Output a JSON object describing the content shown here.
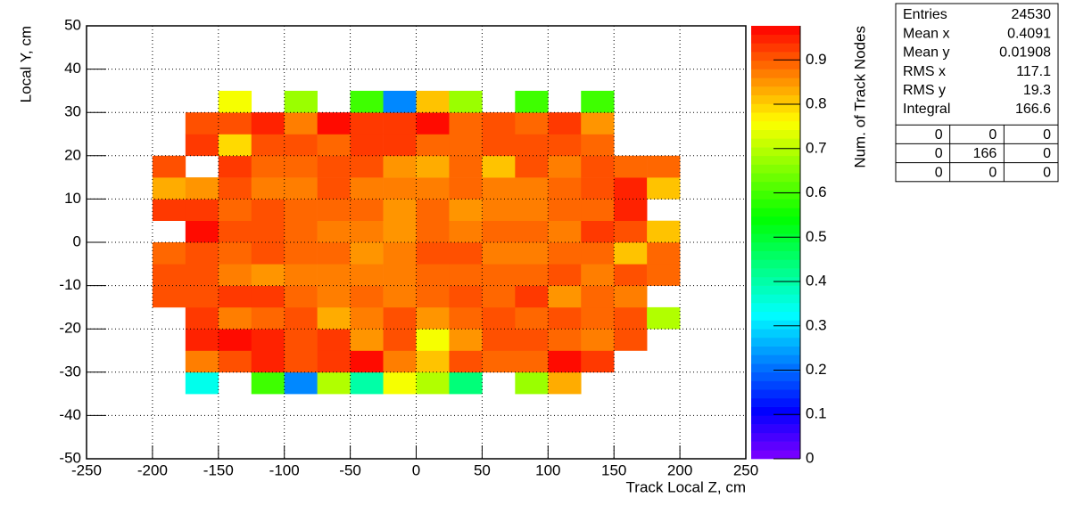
{
  "chart_data": {
    "type": "heatmap",
    "x_label": "Track Local Z, cm",
    "y_label": "Local Y, cm",
    "z_label": "Num. of Track Nodes",
    "x_bins": [
      -200,
      -175,
      -150,
      -125,
      -100,
      -75,
      -50,
      -25,
      0,
      25,
      50,
      75,
      100,
      125,
      150,
      175,
      200
    ],
    "y_bins": [
      -35,
      -30,
      -25,
      -20,
      -15,
      -10,
      -5,
      0,
      5,
      10,
      15,
      20,
      25,
      30,
      35
    ],
    "z": [
      [
        null,
        0.35,
        null,
        0.6,
        0.22,
        0.7,
        0.4,
        0.75,
        0.7,
        0.43,
        null,
        0.68,
        0.83,
        null,
        null,
        null
      ],
      [
        null,
        0.87,
        0.91,
        0.94,
        0.91,
        0.92,
        0.96,
        0.87,
        0.82,
        0.9,
        0.88,
        0.89,
        0.96,
        0.92,
        null,
        null
      ],
      [
        null,
        0.94,
        0.96,
        0.94,
        0.91,
        0.93,
        0.85,
        0.9,
        0.76,
        0.85,
        0.91,
        0.91,
        0.88,
        0.86,
        0.91,
        null
      ],
      [
        null,
        0.92,
        0.87,
        0.89,
        0.91,
        0.83,
        0.87,
        0.9,
        0.85,
        0.88,
        0.9,
        0.89,
        0.91,
        0.89,
        0.91,
        0.7
      ],
      [
        0.91,
        0.91,
        0.93,
        0.92,
        0.88,
        0.87,
        0.88,
        0.87,
        0.89,
        0.9,
        0.88,
        0.92,
        0.85,
        0.88,
        0.87,
        null
      ],
      [
        0.9,
        0.9,
        0.87,
        0.85,
        0.87,
        0.86,
        0.87,
        0.87,
        0.88,
        0.89,
        0.88,
        0.88,
        0.9,
        0.87,
        0.91,
        0.89
      ],
      [
        0.89,
        0.9,
        0.89,
        0.9,
        0.88,
        0.88,
        0.85,
        0.87,
        0.9,
        0.9,
        0.87,
        0.87,
        0.88,
        0.89,
        0.82,
        0.88
      ],
      [
        null,
        0.96,
        0.9,
        0.91,
        0.89,
        0.86,
        0.87,
        0.85,
        0.88,
        0.87,
        0.89,
        0.88,
        0.87,
        0.92,
        0.9,
        0.81
      ],
      [
        0.92,
        0.92,
        0.89,
        0.9,
        0.89,
        0.89,
        0.88,
        0.85,
        0.88,
        0.85,
        0.87,
        0.87,
        0.88,
        0.88,
        0.94,
        null
      ],
      [
        0.83,
        0.85,
        0.9,
        0.87,
        0.86,
        0.9,
        0.86,
        0.86,
        0.87,
        0.89,
        0.87,
        0.87,
        0.89,
        0.91,
        0.94,
        0.82
      ],
      [
        0.91,
        null,
        0.92,
        0.89,
        0.88,
        0.9,
        0.91,
        0.85,
        0.84,
        0.89,
        0.82,
        0.9,
        0.87,
        0.9,
        0.88,
        0.88
      ],
      [
        null,
        0.92,
        0.8,
        0.9,
        0.9,
        0.89,
        0.92,
        0.92,
        0.88,
        0.89,
        0.9,
        0.9,
        0.91,
        0.88,
        null,
        null
      ],
      [
        null,
        0.9,
        0.9,
        0.94,
        0.86,
        0.97,
        0.92,
        0.92,
        0.96,
        0.89,
        0.9,
        0.88,
        0.93,
        0.85,
        null,
        null
      ],
      [
        null,
        null,
        0.75,
        null,
        0.68,
        null,
        0.6,
        0.22,
        0.82,
        0.68,
        null,
        0.6,
        null,
        0.6,
        null,
        null
      ]
    ],
    "xlim": [
      -250,
      250
    ],
    "xticks": [
      -250,
      -200,
      -150,
      -100,
      -50,
      0,
      50,
      100,
      150,
      200,
      250
    ],
    "ylim": [
      -50,
      50
    ],
    "yticks": [
      -50,
      -40,
      -30,
      -20,
      -10,
      0,
      10,
      20,
      30,
      40,
      50
    ],
    "zlim": [
      0,
      0.977
    ],
    "zticks": [
      0,
      0.1,
      0.2,
      0.3,
      0.4,
      0.5,
      0.6,
      0.7,
      0.8,
      0.9
    ],
    "grid": true,
    "colormap": "rainbow"
  },
  "stats": {
    "rows": [
      {
        "label": "Entries",
        "value": 24530
      },
      {
        "label": "Mean x",
        "value": 0.4091
      },
      {
        "label": "Mean y",
        "value": 0.01908
      },
      {
        "label": "RMS x",
        "value": 117.1
      },
      {
        "label": "RMS y",
        "value": 19.3
      },
      {
        "label": "Integral",
        "value": 166.6
      }
    ],
    "grid": [
      [
        0,
        0,
        0
      ],
      [
        0,
        166,
        0
      ],
      [
        0,
        0,
        0
      ]
    ]
  }
}
